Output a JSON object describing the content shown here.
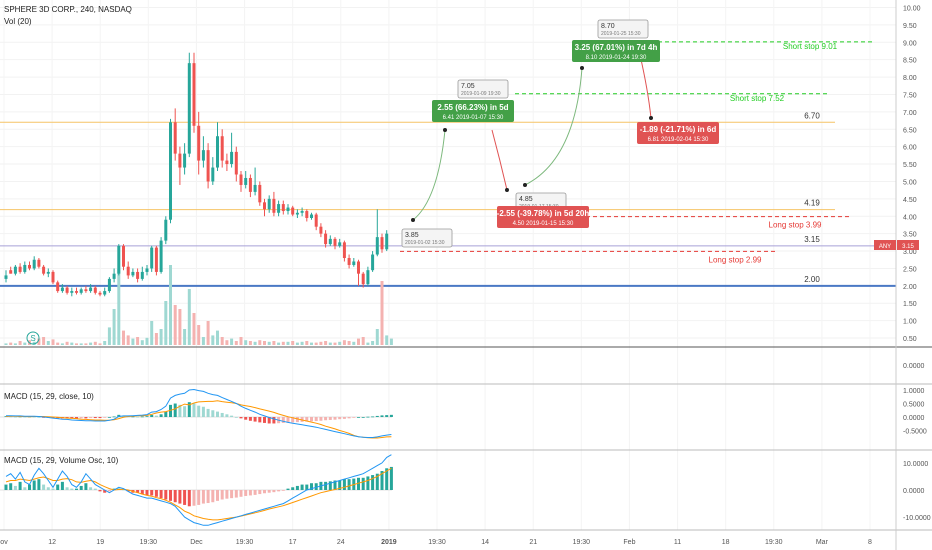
{
  "header": {
    "symbol": "SPHERE 3D CORP., 240, NASDAQ",
    "volume_label": "Vol (20)",
    "macd1_label": "MACD (15, 29, close, 10)",
    "macd2_label": "MACD (15, 29, Volume Osc, 10)",
    "price_tag_name": "ANY",
    "price_tag_value": "3.15"
  },
  "colors": {
    "up": "#26a69a",
    "down": "#ef5350",
    "up_light": "#9fd8d2",
    "down_light": "#f4b2b0",
    "hline_orange": "#f6c467",
    "hline_blue": "#4a78c4",
    "hline_purple": "#a8a0d8",
    "macd_line": "#2196f3",
    "signal_line": "#ff9800",
    "green_box": "#43a047",
    "red_box": "#e05353"
  },
  "chart_data": [
    {
      "type": "candlestick",
      "name": "price",
      "ylim": [
        0.3,
        10.1
      ],
      "y_ticks": [
        "0.50",
        "1.00",
        "1.50",
        "2.00",
        "2.50",
        "3.00",
        "3.50",
        "4.00",
        "4.50",
        "5.00",
        "5.50",
        "6.00",
        "6.50",
        "7.00",
        "7.50",
        "8.00",
        "8.50",
        "9.00",
        "9.50",
        "10.00"
      ],
      "x_ticks": [
        "ov",
        "12",
        "19",
        "19:30",
        "Dec",
        "19:30",
        "17",
        "24",
        "2019",
        "19:30",
        "14",
        "21",
        "19:30",
        "Feb",
        "11",
        "18",
        "19:30",
        "Mar",
        "8"
      ],
      "candles": [
        [
          2.2,
          2.3,
          2.1,
          2.45
        ],
        [
          2.45,
          2.35,
          2.35,
          2.55
        ],
        [
          2.35,
          2.55,
          2.3,
          2.6
        ],
        [
          2.55,
          2.4,
          2.35,
          2.65
        ],
        [
          2.4,
          2.6,
          2.35,
          2.7
        ],
        [
          2.6,
          2.5,
          2.45,
          2.7
        ],
        [
          2.5,
          2.75,
          2.45,
          2.85
        ],
        [
          2.75,
          2.55,
          2.5,
          2.8
        ],
        [
          2.55,
          2.35,
          2.3,
          2.6
        ],
        [
          2.35,
          2.4,
          2.25,
          2.5
        ],
        [
          2.4,
          2.1,
          2.05,
          2.45
        ],
        [
          2.1,
          1.85,
          1.8,
          2.15
        ],
        [
          1.85,
          1.95,
          1.8,
          2.05
        ],
        [
          1.95,
          1.8,
          1.75,
          2.0
        ],
        [
          1.8,
          1.85,
          1.7,
          1.95
        ],
        [
          1.85,
          1.8,
          1.75,
          1.95
        ],
        [
          1.8,
          1.9,
          1.75,
          1.95
        ],
        [
          1.9,
          1.85,
          1.8,
          2.0
        ],
        [
          1.85,
          1.95,
          1.8,
          2.05
        ],
        [
          1.95,
          1.8,
          1.75,
          2.0
        ],
        [
          1.8,
          1.75,
          1.7,
          1.85
        ],
        [
          1.75,
          1.85,
          1.7,
          1.95
        ],
        [
          1.85,
          2.2,
          1.8,
          2.25
        ],
        [
          2.2,
          2.35,
          2.1,
          2.5
        ],
        [
          2.35,
          3.15,
          2.3,
          3.2
        ],
        [
          3.15,
          2.55,
          2.45,
          3.2
        ],
        [
          2.55,
          2.3,
          2.2,
          2.7
        ],
        [
          2.3,
          2.4,
          2.25,
          2.5
        ],
        [
          2.4,
          2.2,
          2.1,
          2.5
        ],
        [
          2.2,
          2.4,
          2.15,
          2.55
        ],
        [
          2.4,
          2.5,
          2.3,
          2.6
        ],
        [
          2.5,
          3.1,
          2.4,
          3.15
        ],
        [
          3.1,
          2.4,
          2.3,
          3.15
        ],
        [
          2.4,
          3.3,
          2.35,
          3.4
        ],
        [
          3.3,
          3.9,
          3.2,
          4.0
        ],
        [
          3.9,
          6.7,
          3.8,
          6.8
        ],
        [
          6.7,
          5.8,
          5.6,
          7.1
        ],
        [
          5.8,
          5.4,
          4.9,
          6.0
        ],
        [
          5.4,
          5.8,
          5.2,
          6.1
        ],
        [
          5.8,
          8.4,
          5.7,
          8.7
        ],
        [
          8.4,
          6.6,
          6.4,
          8.7
        ],
        [
          6.6,
          5.6,
          5.2,
          7.0
        ],
        [
          5.6,
          5.9,
          5.4,
          6.3
        ],
        [
          5.9,
          5.0,
          4.8,
          6.1
        ],
        [
          5.0,
          5.4,
          4.9,
          5.7
        ],
        [
          5.4,
          6.3,
          5.3,
          6.7
        ],
        [
          6.3,
          5.6,
          5.4,
          6.5
        ],
        [
          5.6,
          5.5,
          5.3,
          5.8
        ],
        [
          5.5,
          5.85,
          5.4,
          6.4
        ],
        [
          5.85,
          5.2,
          5.0,
          6.0
        ],
        [
          5.2,
          4.9,
          4.7,
          5.3
        ],
        [
          4.9,
          5.1,
          4.8,
          5.3
        ],
        [
          5.1,
          4.7,
          4.55,
          5.2
        ],
        [
          4.7,
          4.9,
          4.6,
          5.4
        ],
        [
          4.9,
          4.4,
          4.3,
          5.0
        ],
        [
          4.4,
          4.2,
          4.0,
          4.5
        ],
        [
          4.2,
          4.5,
          4.1,
          4.6
        ],
        [
          4.5,
          4.1,
          4.0,
          4.7
        ],
        [
          4.1,
          4.35,
          4.0,
          4.45
        ],
        [
          4.35,
          4.15,
          4.05,
          4.45
        ],
        [
          4.15,
          4.25,
          4.05,
          4.35
        ],
        [
          4.25,
          4.05,
          4.0,
          4.3
        ],
        [
          4.05,
          4.1,
          3.95,
          4.2
        ],
        [
          4.1,
          4.15,
          4.0,
          4.25
        ],
        [
          4.15,
          3.95,
          3.85,
          4.2
        ],
        [
          3.95,
          4.05,
          3.9,
          4.1
        ],
        [
          4.05,
          3.7,
          3.6,
          4.1
        ],
        [
          3.7,
          3.5,
          3.4,
          3.8
        ],
        [
          3.5,
          3.2,
          3.1,
          3.6
        ],
        [
          3.2,
          3.35,
          3.15,
          3.45
        ],
        [
          3.35,
          3.15,
          3.05,
          3.4
        ],
        [
          3.15,
          3.25,
          3.1,
          3.35
        ],
        [
          3.25,
          2.8,
          2.7,
          3.3
        ],
        [
          2.8,
          2.6,
          2.5,
          2.9
        ],
        [
          2.6,
          2.7,
          2.55,
          2.8
        ],
        [
          2.7,
          2.35,
          2.0,
          2.75
        ],
        [
          2.35,
          2.05,
          1.95,
          2.4
        ],
        [
          2.05,
          2.45,
          2.0,
          2.55
        ],
        [
          2.45,
          2.9,
          2.4,
          3.0
        ],
        [
          2.9,
          3.4,
          2.85,
          4.2
        ],
        [
          3.4,
          3.05,
          2.95,
          3.5
        ],
        [
          3.05,
          3.5,
          3.0,
          3.6
        ]
      ],
      "levels": [
        {
          "label": "6.70",
          "value": 6.7,
          "color": "orange"
        },
        {
          "label": "4.19",
          "value": 4.19,
          "color": "orange"
        },
        {
          "label": "3.15",
          "value": 3.15,
          "color": "purple"
        },
        {
          "label": "2.00",
          "value": 2.0,
          "color": "blue"
        }
      ],
      "stops": [
        {
          "label": "Short stop 9.01",
          "value": 9.01,
          "side": "short"
        },
        {
          "label": "Short stop 7.52",
          "value": 7.52,
          "side": "short"
        },
        {
          "label": "Long stop 3.99",
          "value": 3.99,
          "side": "long"
        },
        {
          "label": "Long stop 2.99",
          "value": 2.99,
          "side": "long"
        }
      ],
      "trade_boxes": [
        {
          "title": "2.55 (66.23%) in 5d",
          "sub": "6.41  2019-01-07 15:30",
          "kind": "gain"
        },
        {
          "title": "-2.55 (-39.78%) in 5d 20h",
          "sub": "4.50  2019-01-15 15:30",
          "kind": "loss"
        },
        {
          "title": "3.25 (67.01%) in 7d 4h",
          "sub": "8.10  2019-01-24 19:30",
          "kind": "gain"
        },
        {
          "title": "-1.89 (-21.71%) in 6d",
          "sub": "6.81  2019-02-04 15:30",
          "kind": "loss"
        }
      ],
      "trade_notes": [
        {
          "price": "3.85",
          "time": "2019-01-02 15:30"
        },
        {
          "price": "7.05",
          "time": "2019-01-09 19:30"
        },
        {
          "price": "4.85",
          "time": "2019-01-17 15:30"
        },
        {
          "price": "8.70",
          "time": "2019-01-25 15:30"
        }
      ]
    },
    {
      "type": "bar",
      "name": "volume",
      "values": [
        0.02,
        0.03,
        0.02,
        0.05,
        0.03,
        0.06,
        0.04,
        0.08,
        0.1,
        0.05,
        0.07,
        0.03,
        0.02,
        0.04,
        0.03,
        0.02,
        0.02,
        0.02,
        0.03,
        0.04,
        0.02,
        0.05,
        0.22,
        0.45,
        0.95,
        0.18,
        0.12,
        0.08,
        0.1,
        0.06,
        0.09,
        0.3,
        0.15,
        0.2,
        0.55,
        1.0,
        0.5,
        0.45,
        0.2,
        0.7,
        0.4,
        0.25,
        0.1,
        0.3,
        0.12,
        0.18,
        0.1,
        0.06,
        0.08,
        0.05,
        0.1,
        0.06,
        0.05,
        0.04,
        0.06,
        0.05,
        0.04,
        0.05,
        0.03,
        0.04,
        0.04,
        0.05,
        0.03,
        0.04,
        0.05,
        0.03,
        0.03,
        0.04,
        0.05,
        0.03,
        0.03,
        0.04,
        0.06,
        0.05,
        0.04,
        0.08,
        0.1,
        0.03,
        0.05,
        0.2,
        0.8,
        0.12,
        0.08
      ]
    },
    {
      "type": "macd",
      "name": "MACD (15, 29, close, 10)",
      "y_ticks": [
        "1.0000",
        "0.5000",
        "0.0000",
        "-0.5000"
      ],
      "ylim": [
        -1.15,
        1.15
      ],
      "histogram": [
        0.03,
        0.02,
        0.01,
        0.02,
        0.01,
        0.02,
        0.01,
        0.0,
        -0.02,
        -0.03,
        -0.04,
        -0.05,
        -0.05,
        -0.05,
        -0.06,
        -0.06,
        -0.05,
        -0.05,
        -0.04,
        -0.04,
        -0.04,
        -0.03,
        0.0,
        0.02,
        0.08,
        0.05,
        0.02,
        0.02,
        0.01,
        0.02,
        0.03,
        0.08,
        0.05,
        0.1,
        0.2,
        0.45,
        0.5,
        0.45,
        0.4,
        0.55,
        0.5,
        0.42,
        0.38,
        0.3,
        0.25,
        0.2,
        0.15,
        0.1,
        0.05,
        0.0,
        -0.05,
        -0.1,
        -0.14,
        -0.17,
        -0.2,
        -0.22,
        -0.24,
        -0.24,
        -0.23,
        -0.22,
        -0.21,
        -0.2,
        -0.19,
        -0.18,
        -0.17,
        -0.16,
        -0.15,
        -0.14,
        -0.12,
        -0.11,
        -0.1,
        -0.08,
        -0.07,
        -0.05,
        -0.02,
        0.0,
        0.0,
        0.01,
        0.02,
        0.04,
        0.06,
        0.07,
        0.08
      ],
      "macd": [
        0.05,
        0.05,
        0.04,
        0.04,
        0.03,
        0.03,
        0.03,
        0.02,
        0.0,
        -0.02,
        -0.04,
        -0.06,
        -0.08,
        -0.09,
        -0.11,
        -0.12,
        -0.13,
        -0.14,
        -0.14,
        -0.15,
        -0.15,
        -0.15,
        -0.12,
        -0.08,
        0.02,
        0.04,
        0.04,
        0.05,
        0.06,
        0.07,
        0.09,
        0.18,
        0.2,
        0.28,
        0.4,
        0.7,
        0.8,
        0.85,
        0.88,
        1.0,
        1.02,
        0.98,
        0.95,
        0.88,
        0.83,
        0.8,
        0.72,
        0.65,
        0.58,
        0.5,
        0.4,
        0.32,
        0.25,
        0.18,
        0.1,
        0.04,
        -0.02,
        -0.07,
        -0.12,
        -0.16,
        -0.2,
        -0.23,
        -0.26,
        -0.29,
        -0.32,
        -0.35,
        -0.38,
        -0.42,
        -0.46,
        -0.5,
        -0.54,
        -0.58,
        -0.62,
        -0.66,
        -0.7,
        -0.73,
        -0.75,
        -0.76,
        -0.76,
        -0.74,
        -0.7,
        -0.67,
        -0.65
      ],
      "signal": [
        0.02,
        0.03,
        0.03,
        0.02,
        0.02,
        0.01,
        0.02,
        0.02,
        0.02,
        0.01,
        0.0,
        -0.01,
        -0.03,
        -0.04,
        -0.05,
        -0.06,
        -0.08,
        -0.09,
        -0.1,
        -0.11,
        -0.11,
        -0.12,
        -0.12,
        -0.1,
        -0.06,
        -0.01,
        0.02,
        0.03,
        0.05,
        0.05,
        0.06,
        0.1,
        0.15,
        0.18,
        0.2,
        0.25,
        0.3,
        0.4,
        0.48,
        0.45,
        0.52,
        0.56,
        0.57,
        0.58,
        0.58,
        0.6,
        0.57,
        0.55,
        0.53,
        0.5,
        0.45,
        0.42,
        0.39,
        0.35,
        0.3,
        0.26,
        0.22,
        0.17,
        0.11,
        0.06,
        0.01,
        -0.03,
        -0.07,
        -0.11,
        -0.15,
        -0.19,
        -0.23,
        -0.28,
        -0.34,
        -0.39,
        -0.44,
        -0.5,
        -0.55,
        -0.61,
        -0.68,
        -0.73,
        -0.75,
        -0.77,
        -0.78,
        -0.78,
        -0.76,
        -0.74,
        -0.73
      ]
    },
    {
      "type": "macd",
      "name": "MACD (15, 29, Volume Osc, 10)",
      "y_ticks": [
        "10.0000",
        "0.0000",
        "-10.0000"
      ],
      "ylim": [
        -14,
        14
      ],
      "histogram": [
        2.0,
        2.5,
        1.5,
        3.0,
        1.0,
        2.0,
        3.5,
        4.0,
        2.0,
        1.0,
        0.5,
        2.0,
        3.0,
        1.0,
        0.5,
        0.5,
        1.5,
        2.5,
        1.0,
        0.5,
        -0.5,
        -1.0,
        -0.5,
        0.5,
        0.5,
        0.2,
        -0.5,
        -1.0,
        -1.0,
        -1.5,
        -2.0,
        -2.0,
        -2.5,
        -3.0,
        -3.5,
        -4.0,
        -4.5,
        -5.0,
        -5.5,
        -6.0,
        -5.8,
        -5.5,
        -5.0,
        -4.8,
        -4.5,
        -4.0,
        -3.5,
        -3.2,
        -3.0,
        -2.8,
        -2.5,
        -2.2,
        -2.0,
        -1.8,
        -1.5,
        -1.2,
        -1.0,
        -0.8,
        -0.5,
        -0.2,
        0.5,
        1.0,
        1.5,
        2.0,
        2.0,
        2.5,
        2.5,
        3.0,
        3.0,
        3.2,
        3.5,
        3.5,
        4.0,
        4.0,
        4.2,
        4.5,
        4.5,
        5.0,
        5.5,
        6.0,
        7.0,
        8.0,
        8.5
      ],
      "macd": [
        5.0,
        6.0,
        4.0,
        6.5,
        3.0,
        2.0,
        5.5,
        8.0,
        6.0,
        3.5,
        1.0,
        4.0,
        7.0,
        5.0,
        2.0,
        1.0,
        3.0,
        6.0,
        4.0,
        2.0,
        1.0,
        0.0,
        -1.0,
        0.0,
        1.0,
        0.5,
        -0.5,
        -1.5,
        -2.0,
        -2.5,
        -3.0,
        -3.0,
        -3.5,
        -4.0,
        -4.5,
        -5.0,
        -6.0,
        -8.0,
        -10.0,
        -11.0,
        -12.0,
        -12.5,
        -13.0,
        -13.0,
        -12.5,
        -12.0,
        -11.5,
        -11.0,
        -10.5,
        -10.0,
        -9.5,
        -9.0,
        -8.5,
        -8.0,
        -7.5,
        -7.0,
        -6.5,
        -6.0,
        -5.5,
        -5.0,
        -4.0,
        -3.0,
        -2.0,
        -1.0,
        0.0,
        0.5,
        1.0,
        1.5,
        2.0,
        2.5,
        3.0,
        3.5,
        4.0,
        4.5,
        5.0,
        5.5,
        6.0,
        7.0,
        8.0,
        9.0,
        10.0,
        12.0,
        13.0
      ],
      "signal": [
        3.0,
        3.5,
        3.5,
        4.0,
        3.8,
        3.5,
        4.0,
        4.5,
        4.8,
        4.2,
        3.5,
        3.5,
        4.0,
        4.2,
        3.8,
        3.0,
        2.8,
        3.2,
        3.5,
        3.0,
        2.0,
        1.2,
        0.5,
        0.0,
        0.2,
        0.3,
        0.0,
        -0.5,
        -1.0,
        -1.5,
        -2.0,
        -2.3,
        -2.8,
        -3.2,
        -3.8,
        -4.5,
        -5.5,
        -6.5,
        -7.8,
        -8.5,
        -9.5,
        -10.0,
        -10.5,
        -10.8,
        -11.0,
        -11.0,
        -10.8,
        -10.5,
        -10.2,
        -10.0,
        -9.6,
        -9.2,
        -8.8,
        -8.4,
        -8.0,
        -7.5,
        -7.0,
        -6.6,
        -6.2,
        -5.8,
        -5.2,
        -4.6,
        -4.0,
        -3.4,
        -2.8,
        -2.2,
        -1.6,
        -1.0,
        -0.6,
        -0.2,
        0.2,
        0.6,
        1.0,
        1.5,
        2.0,
        2.5,
        3.0,
        3.5,
        4.2,
        5.0,
        6.0,
        7.0,
        8.0
      ]
    }
  ]
}
